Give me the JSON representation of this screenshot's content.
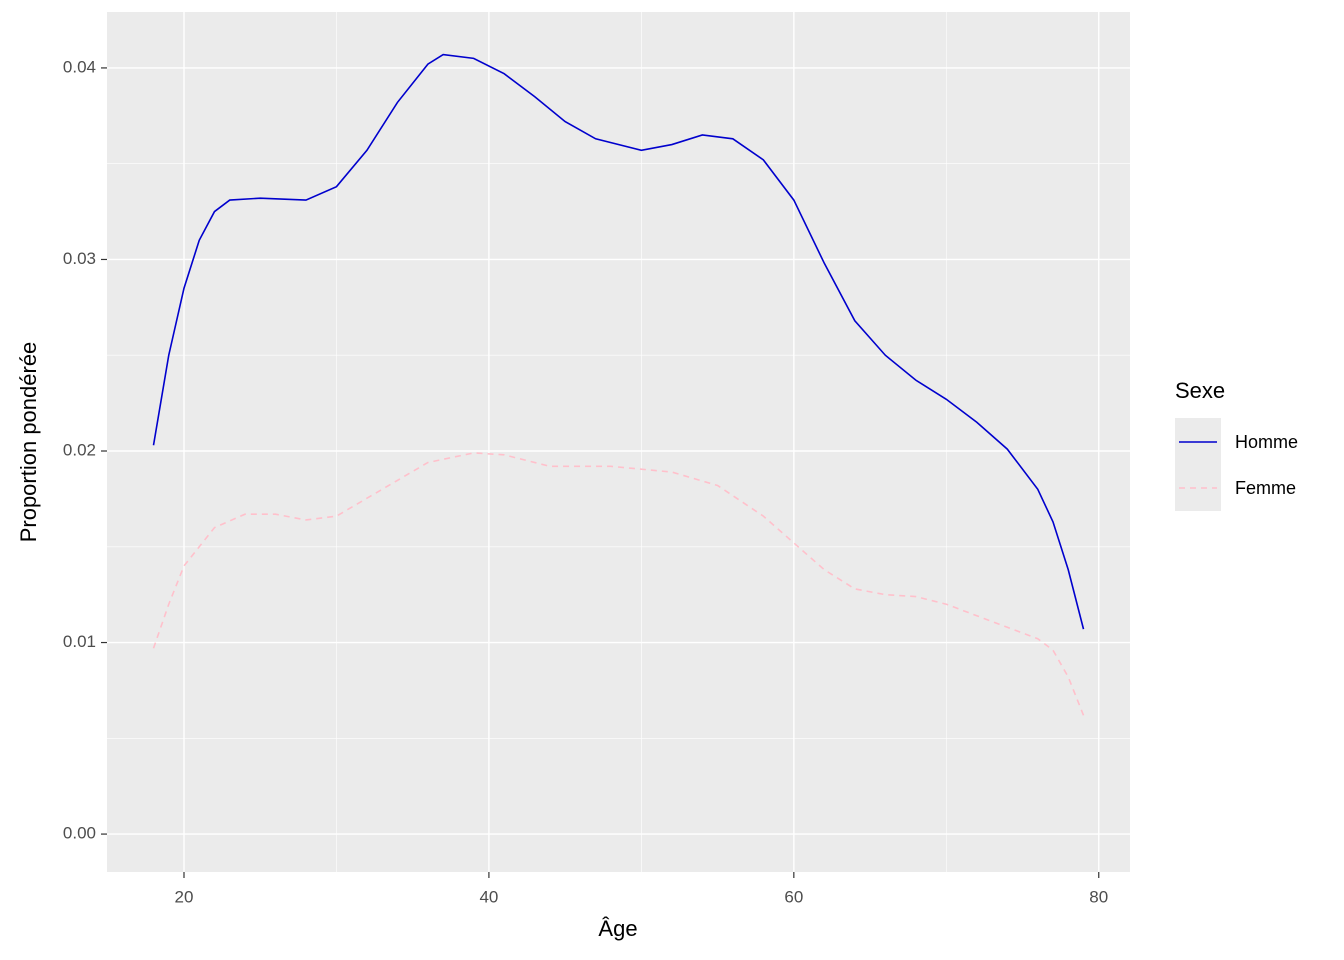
{
  "chart_data": {
    "type": "line",
    "xlabel": "Âge",
    "ylabel": "Proportion pondérée",
    "legend_title": "Sexe",
    "legend": "right",
    "xlim": [
      14.95,
      82.05
    ],
    "xticks": [
      20,
      40,
      60,
      80
    ],
    "ylim": [
      -0.00198,
      0.04292
    ],
    "yticks": [
      {
        "value": 0,
        "label": "0.00"
      },
      0.01,
      0.02,
      0.03,
      0.04
    ],
    "grid": true,
    "series": [
      {
        "name": "Homme",
        "color": "#0000cd",
        "dash": "solid",
        "x": [
          18,
          19,
          20,
          21,
          22,
          23,
          25,
          28,
          30,
          32,
          34,
          36,
          37,
          39,
          41,
          43,
          45,
          47,
          50,
          52,
          54,
          56,
          58,
          60,
          62,
          64,
          66,
          68,
          70,
          72,
          74,
          76,
          77,
          78,
          79
        ],
        "values": [
          0.0203,
          0.025,
          0.0285,
          0.031,
          0.0325,
          0.0331,
          0.0332,
          0.0331,
          0.0338,
          0.0357,
          0.0382,
          0.0402,
          0.0407,
          0.0405,
          0.0397,
          0.0385,
          0.0372,
          0.0363,
          0.0357,
          0.036,
          0.0365,
          0.0363,
          0.0352,
          0.0331,
          0.0298,
          0.0268,
          0.025,
          0.0237,
          0.0227,
          0.0215,
          0.0201,
          0.018,
          0.0163,
          0.0138,
          0.0107
        ]
      },
      {
        "name": "Femme",
        "color": "#ffc0cb",
        "dash": "dashed",
        "x": [
          18,
          19,
          20,
          22,
          24,
          26,
          28,
          30,
          33,
          36,
          39,
          41,
          44,
          48,
          52,
          55,
          58,
          60,
          62,
          64,
          66,
          68,
          70,
          72,
          74,
          76,
          77,
          78,
          79
        ],
        "values": [
          0.0097,
          0.012,
          0.014,
          0.016,
          0.0167,
          0.0167,
          0.0164,
          0.0166,
          0.018,
          0.0194,
          0.0199,
          0.0198,
          0.0192,
          0.0192,
          0.0189,
          0.0182,
          0.0166,
          0.0152,
          0.0138,
          0.0128,
          0.0125,
          0.0124,
          0.012,
          0.0114,
          0.0108,
          0.0102,
          0.0096,
          0.0082,
          0.0062
        ]
      }
    ]
  }
}
